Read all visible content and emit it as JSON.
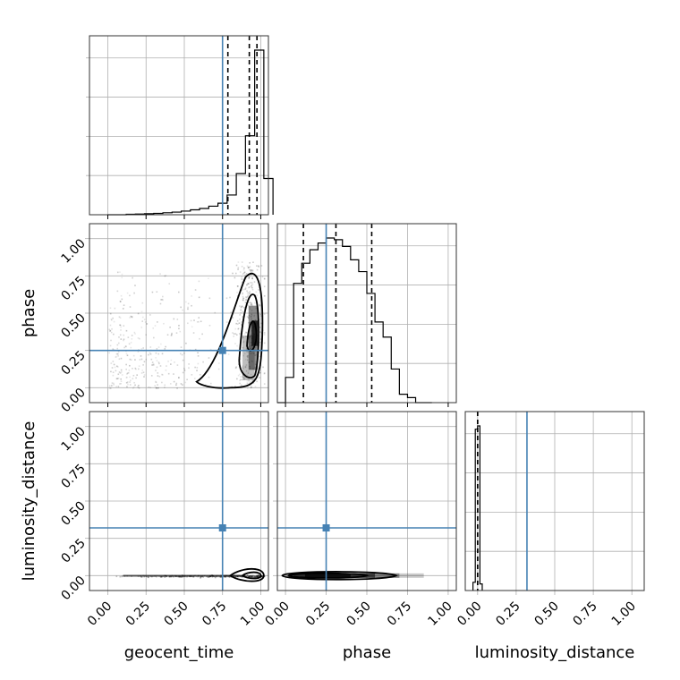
{
  "chart_data": {
    "type": "corner",
    "parameters": [
      "geocent_time",
      "phase",
      "luminosity_distance"
    ],
    "truths": {
      "geocent_time": 0.75,
      "phase": 0.25,
      "luminosity_distance": 0.32
    },
    "ticks": [
      0.0,
      0.25,
      0.5,
      0.75,
      1.0
    ],
    "tick_labels": [
      "0.00",
      "0.25",
      "0.50",
      "0.75",
      "1.00"
    ],
    "xlim": {
      "geocent_time": [
        -0.12,
        1.05
      ],
      "phase": [
        -0.05,
        1.05
      ],
      "luminosity_distance": [
        -0.08,
        1.08
      ]
    },
    "ylim": {
      "phase": [
        -0.1,
        1.1
      ],
      "luminosity_distance": [
        -0.1,
        1.1
      ]
    },
    "grid": true,
    "histograms": {
      "geocent_time": {
        "bin_edges": [
          0.0,
          0.06,
          0.12,
          0.18,
          0.24,
          0.3,
          0.36,
          0.42,
          0.48,
          0.54,
          0.6,
          0.66,
          0.72,
          0.78,
          0.84,
          0.9,
          0.96,
          1.02,
          1.08
        ],
        "counts": [
          0.0,
          0.0,
          0.3,
          0.4,
          0.6,
          0.8,
          1.2,
          1.6,
          2.2,
          3.0,
          3.8,
          5.2,
          7.0,
          12.0,
          25.0,
          48.0,
          100.0,
          22.0
        ],
        "quantiles": [
          0.785,
          0.925,
          0.975
        ]
      },
      "phase": {
        "bin_edges": [
          -0.05,
          0.0,
          0.05,
          0.1,
          0.15,
          0.2,
          0.25,
          0.3,
          0.35,
          0.4,
          0.45,
          0.5,
          0.55,
          0.6,
          0.65,
          0.7,
          0.75,
          0.8,
          0.85,
          0.9
        ],
        "counts": [
          0,
          15,
          71,
          83,
          91,
          95,
          98,
          97,
          93,
          85,
          78,
          65,
          48,
          39,
          20,
          5,
          3,
          0,
          0
        ],
        "quantiles": [
          0.11,
          0.31,
          0.53
        ]
      },
      "luminosity_distance": {
        "bin_edges": [
          -0.03,
          -0.015,
          0.0,
          0.015,
          0.03
        ],
        "counts": [
          5,
          98,
          100,
          4
        ],
        "quantiles": [
          0.0,
          0.0
        ]
      }
    }
  }
}
